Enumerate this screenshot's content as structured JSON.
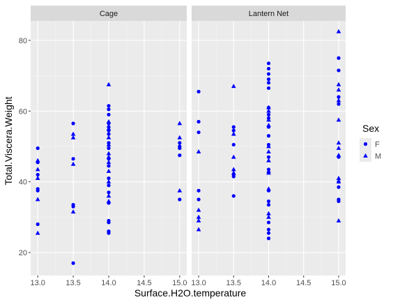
{
  "chart_data": {
    "type": "scatter",
    "xlabel": "Surface.H2O.temperature",
    "ylabel": "Total.Viscera.Weight",
    "xlim": [
      12.9,
      15.1
    ],
    "ylim": [
      13.5,
      85.5
    ],
    "x_ticks": [
      13.0,
      13.5,
      14.0,
      14.5,
      15.0
    ],
    "x_tick_labels": [
      "13.0",
      "13.5",
      "14.0",
      "14.5",
      "15.0"
    ],
    "y_ticks": [
      20,
      40,
      60,
      80
    ],
    "y_tick_labels": [
      "20",
      "40",
      "60",
      "80"
    ],
    "grid": true,
    "point_color": "#0000ff",
    "panel_background": "#ebebeb",
    "strip_background": "#d9d9d9",
    "legend": {
      "title": "Sex",
      "position": "right",
      "entries": [
        {
          "label": "F",
          "shape": "circle"
        },
        {
          "label": "M",
          "shape": "triangle"
        }
      ]
    },
    "facets": [
      {
        "label": "Cage",
        "series": [
          {
            "name": "F",
            "shape": "circle",
            "points": [
              [
                13.0,
                49.5
              ],
              [
                13.0,
                45.5
              ],
              [
                13.0,
                42.0
              ],
              [
                13.0,
                38.0
              ],
              [
                13.0,
                37.5
              ],
              [
                13.0,
                28.0
              ],
              [
                13.5,
                56.5
              ],
              [
                13.5,
                46.5
              ],
              [
                13.5,
                33.5
              ],
              [
                13.5,
                33.0
              ],
              [
                13.5,
                17.0
              ],
              [
                14.0,
                61.5
              ],
              [
                14.0,
                60.5
              ],
              [
                14.0,
                59.0
              ],
              [
                14.0,
                56.5
              ],
              [
                14.0,
                55.5
              ],
              [
                14.0,
                54.5
              ],
              [
                14.0,
                53.5
              ],
              [
                14.0,
                51.0
              ],
              [
                14.0,
                49.5
              ],
              [
                14.0,
                46.5
              ],
              [
                14.0,
                44.5
              ],
              [
                14.0,
                41.0
              ],
              [
                14.0,
                39.0
              ],
              [
                14.0,
                37.0
              ],
              [
                14.0,
                34.0
              ],
              [
                14.0,
                29.0
              ],
              [
                14.0,
                28.5
              ],
              [
                14.0,
                26.0
              ],
              [
                14.0,
                25.5
              ],
              [
                15.0,
                51.0
              ],
              [
                15.0,
                50.0
              ],
              [
                15.0,
                49.5
              ],
              [
                15.0,
                47.5
              ],
              [
                15.0,
                35.0
              ]
            ]
          },
          {
            "name": "M",
            "shape": "triangle",
            "points": [
              [
                13.0,
                46.0
              ],
              [
                13.0,
                43.5
              ],
              [
                13.0,
                41.0
              ],
              [
                13.0,
                35.0
              ],
              [
                13.0,
                25.5
              ],
              [
                13.5,
                53.5
              ],
              [
                13.5,
                52.5
              ],
              [
                13.5,
                45.0
              ],
              [
                13.5,
                31.5
              ],
              [
                14.0,
                67.5
              ],
              [
                14.0,
                57.0
              ],
              [
                14.0,
                55.0
              ],
              [
                14.0,
                52.5
              ],
              [
                14.0,
                50.5
              ],
              [
                14.0,
                48.0
              ],
              [
                14.0,
                47.0
              ],
              [
                14.0,
                45.5
              ],
              [
                14.0,
                43.0
              ],
              [
                14.0,
                40.0
              ],
              [
                14.0,
                36.0
              ],
              [
                14.0,
                34.5
              ],
              [
                15.0,
                56.5
              ],
              [
                15.0,
                52.5
              ],
              [
                15.0,
                37.5
              ]
            ]
          }
        ]
      },
      {
        "label": "Lantern Net",
        "series": [
          {
            "name": "F",
            "shape": "circle",
            "points": [
              [
                13.0,
                65.5
              ],
              [
                13.0,
                57.0
              ],
              [
                13.0,
                54.0
              ],
              [
                13.0,
                37.5
              ],
              [
                13.0,
                35.0
              ],
              [
                13.5,
                55.5
              ],
              [
                13.5,
                54.5
              ],
              [
                13.5,
                50.5
              ],
              [
                13.5,
                42.0
              ],
              [
                13.5,
                41.5
              ],
              [
                13.5,
                36.0
              ],
              [
                14.0,
                73.5
              ],
              [
                14.0,
                72.0
              ],
              [
                14.0,
                70.5
              ],
              [
                14.0,
                69.0
              ],
              [
                14.0,
                68.0
              ],
              [
                14.0,
                66.5
              ],
              [
                14.0,
                61.0
              ],
              [
                14.0,
                59.0
              ],
              [
                14.0,
                58.0
              ],
              [
                14.0,
                55.5
              ],
              [
                14.0,
                53.0
              ],
              [
                14.0,
                50.5
              ],
              [
                14.0,
                47.0
              ],
              [
                14.0,
                43.5
              ],
              [
                14.0,
                37.5
              ],
              [
                14.0,
                34.5
              ],
              [
                14.0,
                33.5
              ],
              [
                14.0,
                28.5
              ],
              [
                14.0,
                26.5
              ],
              [
                14.0,
                25.5
              ],
              [
                14.0,
                24.0
              ],
              [
                15.0,
                75.0
              ],
              [
                15.0,
                71.5
              ],
              [
                15.0,
                64.0
              ],
              [
                15.0,
                62.0
              ],
              [
                15.0,
                47.0
              ],
              [
                15.0,
                40.0
              ],
              [
                15.0,
                38.5
              ],
              [
                15.0,
                35.0
              ],
              [
                15.0,
                34.5
              ]
            ]
          },
          {
            "name": "M",
            "shape": "triangle",
            "points": [
              [
                13.0,
                48.5
              ],
              [
                13.0,
                32.0
              ],
              [
                13.0,
                30.0
              ],
              [
                13.0,
                29.0
              ],
              [
                13.0,
                26.5
              ],
              [
                13.5,
                67.0
              ],
              [
                13.5,
                53.5
              ],
              [
                13.5,
                47.0
              ],
              [
                13.5,
                43.5
              ],
              [
                13.5,
                42.5
              ],
              [
                14.0,
                61.0
              ],
              [
                14.0,
                60.0
              ],
              [
                14.0,
                57.5
              ],
              [
                14.0,
                56.0
              ],
              [
                14.0,
                50.0
              ],
              [
                14.0,
                48.5
              ],
              [
                14.0,
                46.0
              ],
              [
                14.0,
                43.0
              ],
              [
                14.0,
                42.5
              ],
              [
                14.0,
                38.0
              ],
              [
                14.0,
                31.0
              ],
              [
                14.0,
                30.0
              ],
              [
                15.0,
                82.5
              ],
              [
                15.0,
                67.5
              ],
              [
                15.0,
                66.0
              ],
              [
                15.0,
                63.0
              ],
              [
                15.0,
                57.5
              ],
              [
                15.0,
                51.0
              ],
              [
                15.0,
                49.5
              ],
              [
                15.0,
                47.5
              ],
              [
                15.0,
                41.0
              ],
              [
                15.0,
                40.0
              ],
              [
                15.0,
                29.0
              ]
            ]
          }
        ]
      }
    ]
  }
}
